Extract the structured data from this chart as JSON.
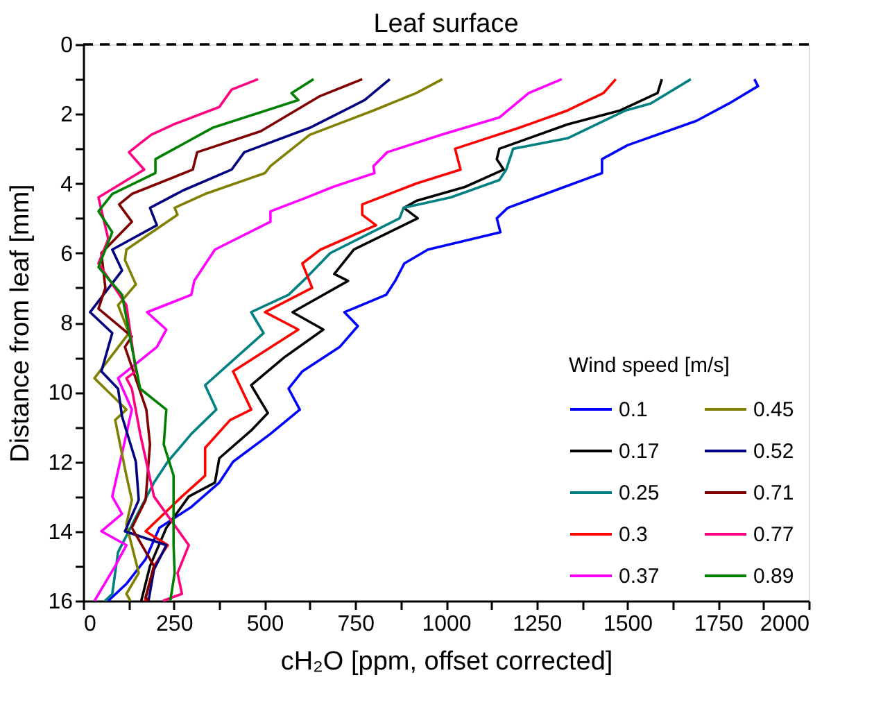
{
  "chart_data": {
    "type": "line",
    "xlabel": "cH₂O [ppm, offset corrected]",
    "ylabel": "Distance from leaf [mm]",
    "legend_title": "Wind speed [m/s]",
    "legend": "bottom right",
    "grid": false,
    "marker": "none",
    "line_style": "solid",
    "xlim": [
      0,
      2000
    ],
    "ylim": [
      16,
      0
    ],
    "xticks": [
      0,
      {
        "value": 125,
        "label": null
      },
      250,
      {
        "value": 375,
        "label": null
      },
      500,
      {
        "value": 625,
        "label": null
      },
      750,
      {
        "value": 875,
        "label": null
      },
      1000,
      {
        "value": 1125,
        "label": null
      },
      1250,
      {
        "value": 1375,
        "label": null
      },
      1500,
      {
        "value": 1625,
        "label": null
      },
      1750,
      {
        "value": 1875,
        "label": null
      },
      2000
    ],
    "yticks": [
      0,
      {
        "value": 1,
        "label": null
      },
      2,
      {
        "value": 3,
        "label": null
      },
      4,
      {
        "value": 5,
        "label": null
      },
      6,
      {
        "value": 7,
        "label": null
      },
      8,
      {
        "value": 9,
        "label": null
      },
      10,
      {
        "value": 11,
        "label": null
      },
      12,
      {
        "value": 13,
        "label": null
      },
      14,
      {
        "value": 15,
        "label": null
      },
      16
    ],
    "ref_lines": [
      {
        "axis": "y",
        "value": 0,
        "label": "Leaf surface",
        "line_style": "dashed",
        "color": "#000000"
      }
    ],
    "series": [
      {
        "name": "0.1",
        "color": "#0000ff",
        "x": [
          1850,
          1860,
          1780,
          1690,
          1500,
          1430,
          1430,
          1300,
          1170,
          1140,
          1150,
          950,
          885,
          860,
          835,
          720,
          757,
          707,
          604,
          566,
          597,
          516,
          413,
          375,
          298,
          210,
          172,
          120,
          69
        ],
        "values": [
          1.0,
          1.2,
          1.7,
          2.2,
          2.9,
          3.3,
          3.7,
          4.2,
          4.7,
          5.0,
          5.4,
          5.9,
          6.3,
          6.8,
          7.2,
          7.7,
          8.1,
          8.7,
          9.4,
          9.9,
          10.5,
          11.2,
          12.0,
          12.6,
          13.3,
          13.9,
          14.8,
          15.5,
          16.0
        ]
      },
      {
        "name": "0.17",
        "color": "#000000",
        "x": [
          1595,
          1583,
          1480,
          1335,
          1147,
          1140,
          1159,
          1052,
          918,
          884,
          922,
          746,
          692,
          730,
          577,
          662,
          554,
          463,
          509,
          463,
          375,
          363,
          291,
          229,
          184,
          160
        ],
        "values": [
          1.0,
          1.4,
          1.9,
          2.3,
          3.0,
          3.3,
          3.6,
          4.1,
          4.5,
          4.7,
          5.0,
          5.9,
          6.6,
          6.8,
          7.7,
          8.2,
          9.0,
          9.8,
          10.6,
          11.1,
          11.9,
          12.6,
          13.0,
          13.9,
          15.0,
          16.0
        ]
      },
      {
        "name": "0.25",
        "color": "#008080",
        "x": [
          1675,
          1564,
          1495,
          1335,
          1185,
          1166,
          1147,
          1013,
          883,
          872,
          681,
          616,
          566,
          463,
          497,
          336,
          367,
          298,
          233,
          195,
          145,
          96,
          80,
          60
        ],
        "values": [
          1.0,
          1.7,
          1.9,
          2.7,
          3.0,
          3.6,
          3.9,
          4.4,
          4.7,
          5.0,
          6.0,
          6.7,
          7.2,
          7.7,
          8.3,
          9.8,
          10.5,
          11.2,
          12.0,
          12.6,
          13.6,
          14.6,
          15.8,
          16.0
        ]
      },
      {
        "name": "0.3",
        "color": "#ff0000",
        "x": [
          1468,
          1434,
          1335,
          1201,
          1025,
          1040,
          918,
          769,
          769,
          807,
          654,
          604,
          631,
          501,
          593,
          413,
          463,
          405,
          336,
          336,
          272,
          172,
          233,
          195,
          170
        ],
        "values": [
          1.0,
          1.4,
          1.9,
          2.4,
          3.0,
          3.6,
          4.0,
          4.6,
          4.9,
          5.2,
          5.9,
          6.3,
          7.0,
          7.7,
          8.2,
          9.4,
          10.5,
          10.8,
          11.6,
          12.4,
          13.0,
          14.0,
          14.4,
          15.0,
          16.0
        ]
      },
      {
        "name": "0.37",
        "color": "#ff00ff",
        "x": [
          1319,
          1228,
          1147,
          987,
          838,
          800,
          803,
          688,
          616,
          516,
          516,
          363,
          306,
          298,
          176,
          229,
          203,
          96,
          134,
          119,
          80,
          107,
          50,
          119,
          88,
          31
        ],
        "values": [
          1.0,
          1.4,
          2.1,
          2.6,
          3.1,
          3.5,
          3.7,
          4.1,
          4.4,
          4.8,
          5.1,
          5.9,
          6.8,
          7.2,
          7.7,
          8.2,
          8.7,
          9.6,
          10.5,
          11.2,
          13.0,
          13.5,
          14.0,
          14.4,
          15.0,
          16.0
        ]
      },
      {
        "name": "0.45",
        "color": "#808000",
        "x": [
          990,
          918,
          800,
          624,
          516,
          501,
          336,
          252,
          260,
          119,
          115,
          145,
          96,
          126,
          31,
          119,
          88,
          119,
          134,
          119,
          153,
          119,
          130
        ],
        "values": [
          1.0,
          1.4,
          1.9,
          2.6,
          3.5,
          3.7,
          4.3,
          4.7,
          4.9,
          5.9,
          6.2,
          6.9,
          7.5,
          8.3,
          9.6,
          10.5,
          10.8,
          12.4,
          13.1,
          13.8,
          15.2,
          15.8,
          16.0
        ]
      },
      {
        "name": "0.52",
        "color": "#000080",
        "x": [
          845,
          776,
          624,
          444,
          409,
          275,
          184,
          203,
          80,
          107,
          19,
          80,
          50,
          96,
          107,
          145,
          153,
          115,
          229,
          195,
          180
        ],
        "values": [
          1.0,
          1.6,
          2.4,
          3.1,
          3.6,
          4.2,
          4.7,
          5.2,
          5.9,
          6.5,
          7.7,
          8.3,
          9.4,
          9.9,
          10.7,
          12.0,
          13.1,
          14.0,
          14.4,
          15.1,
          16.0
        ]
      },
      {
        "name": "0.71",
        "color": "#800000",
        "x": [
          769,
          650,
          489,
          314,
          302,
          134,
          99,
          134,
          50,
          61,
          42,
          134,
          115,
          174,
          184,
          172,
          134,
          195,
          172,
          180
        ],
        "values": [
          1.0,
          1.5,
          2.5,
          3.1,
          3.6,
          4.3,
          4.6,
          5.1,
          6.0,
          7.0,
          7.6,
          8.4,
          8.7,
          10.5,
          11.5,
          13.1,
          13.9,
          15.0,
          15.9,
          16.0
        ]
      },
      {
        "name": "0.77",
        "color": "#ff0080",
        "x": [
          482,
          409,
          375,
          249,
          187,
          126,
          168,
          42,
          69,
          42,
          119,
          145,
          119,
          134,
          157,
          195,
          291,
          260,
          272,
          220
        ],
        "values": [
          1.0,
          1.3,
          1.8,
          2.3,
          2.6,
          3.1,
          3.6,
          4.4,
          5.6,
          6.3,
          7.5,
          9.4,
          9.6,
          9.9,
          11.2,
          13.0,
          14.4,
          15.2,
          15.8,
          16.0
        ]
      },
      {
        "name": "0.89",
        "color": "#008000",
        "x": [
          635,
          574,
          593,
          356,
          199,
          199,
          80,
          42,
          80,
          42,
          107,
          134,
          157,
          229,
          222,
          249,
          249,
          249,
          252,
          240
        ],
        "values": [
          1.0,
          1.4,
          1.6,
          2.4,
          3.3,
          3.7,
          4.3,
          4.8,
          5.4,
          6.4,
          7.2,
          8.7,
          9.9,
          10.5,
          11.5,
          12.4,
          13.5,
          14.4,
          15.2,
          16.0
        ]
      }
    ]
  }
}
